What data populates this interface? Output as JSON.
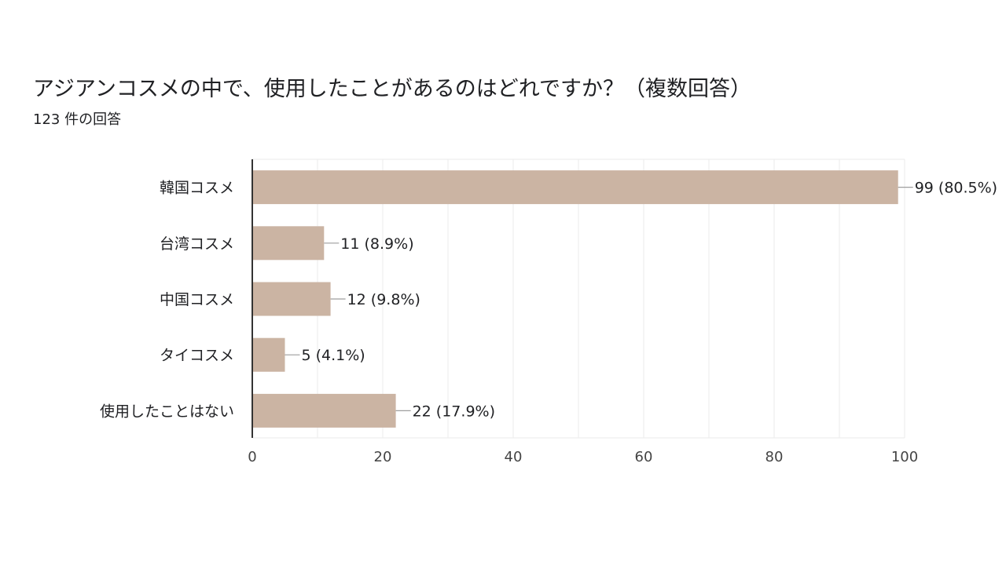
{
  "header": {
    "title": "アジアンコスメの中で、使用したことがあるのはどれですか？（複数回答）",
    "subtitle": "123 件の回答"
  },
  "chart_data": {
    "type": "bar",
    "orientation": "horizontal",
    "title": "アジアンコスメの中で、使用したことがあるのはどれですか？（複数回答）",
    "subtitle": "123 件の回答",
    "categories": [
      "韓国コスメ",
      "台湾コスメ",
      "中国コスメ",
      "タイコスメ",
      "使用したことはない"
    ],
    "values": [
      99,
      11,
      12,
      5,
      22
    ],
    "labels": [
      "99 (80.5%)",
      "11 (8.9%)",
      "12 (9.8%)",
      "5 (4.1%)",
      "22 (17.9%)"
    ],
    "xlim": [
      0,
      100
    ],
    "x_ticks": [
      "0",
      "20",
      "40",
      "60",
      "80",
      "100"
    ],
    "grid": true,
    "bar_color": "#cbb4a3",
    "grid_color": "#ebebeb",
    "axis_color": "#333333"
  }
}
